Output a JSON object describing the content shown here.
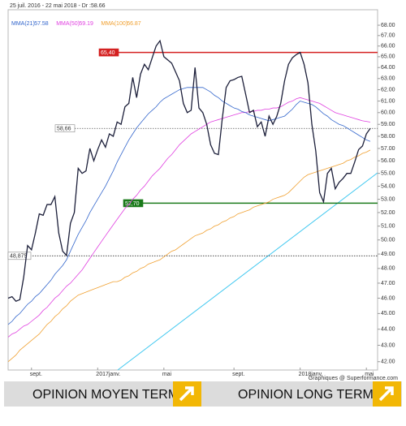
{
  "chart_data": {
    "type": "line",
    "subtitle": "25 juil. 2016 - 22 mai 2018 - Dr :",
    "credit": "Graphiques @ Superformance.com",
    "yscale": "log",
    "ylim": [
      41.6,
      69.2
    ],
    "yticks": [
      {
        "value": 42,
        "label": "42.00"
      },
      {
        "value": 43,
        "label": "43.00"
      },
      {
        "value": 44,
        "label": "44.00"
      },
      {
        "value": 45,
        "label": "45.00"
      },
      {
        "value": 46,
        "label": "46.00"
      },
      {
        "value": 47,
        "label": "47.00"
      },
      {
        "value": 48,
        "label": "48.00"
      },
      {
        "value": 49,
        "label": "49.00"
      },
      {
        "value": 50,
        "label": "50.00"
      },
      {
        "value": 51,
        "label": "51.00"
      },
      {
        "value": 52,
        "label": "52.00"
      },
      {
        "value": 53,
        "label": "53.00"
      },
      {
        "value": 54,
        "label": "54.00"
      },
      {
        "value": 55,
        "label": "55.00"
      },
      {
        "value": 56,
        "label": "56.00"
      },
      {
        "value": 57,
        "label": "57.00"
      },
      {
        "value": 58,
        "label": "58.00"
      },
      {
        "value": 59,
        "label": "59.00"
      },
      {
        "value": 60,
        "label": "60.00"
      },
      {
        "value": 61,
        "label": "61.00"
      },
      {
        "value": 62,
        "label": "62.00"
      },
      {
        "value": 63,
        "label": "63.00"
      },
      {
        "value": 64,
        "label": "64.00"
      },
      {
        "value": 65,
        "label": "65.00"
      },
      {
        "value": 66,
        "label": "66.00"
      },
      {
        "value": 67,
        "label": "67.00"
      },
      {
        "value": 68,
        "label": "68.00"
      }
    ],
    "grid": false,
    "categories": [
      null,
      null,
      null,
      null,
      null,
      null,
      "sept.",
      null,
      null,
      null,
      null,
      null,
      null,
      null,
      null,
      null,
      null,
      null,
      null,
      null,
      null,
      null,
      null,
      "2017janv.",
      null,
      null,
      null,
      null,
      null,
      null,
      null,
      null,
      null,
      null,
      null,
      null,
      null,
      null,
      null,
      null,
      "mai",
      null,
      null,
      null,
      null,
      null,
      null,
      null,
      null,
      null,
      null,
      null,
      null,
      null,
      null,
      null,
      null,
      null,
      "sept.",
      null,
      null,
      null,
      null,
      null,
      null,
      null,
      null,
      null,
      null,
      null,
      null,
      null,
      null,
      null,
      null,
      "2018janv.",
      null,
      null,
      null,
      null,
      null,
      null,
      null,
      null,
      null,
      null,
      null,
      null,
      null,
      null,
      null,
      null,
      "mai",
      null
    ],
    "series": [
      {
        "color": "#1c1f3a",
        "values": [
          46.0,
          46.1,
          45.8,
          45.9,
          47.4,
          49.6,
          49.3,
          50.5,
          51.9,
          51.8,
          52.6,
          52.6,
          53.2,
          50.5,
          49.2,
          48.9,
          51.2,
          52.0,
          55.4,
          55.0,
          55.2,
          57.0,
          56.0,
          56.9,
          57.7,
          57.1,
          58.2,
          58.0,
          59.2,
          59.0,
          60.5,
          60.8,
          63.1,
          61.3,
          63.4,
          64.3,
          63.8,
          64.9,
          66.0,
          66.5,
          65.0,
          64.7,
          64.4,
          63.6,
          62.8,
          60.8,
          60.0,
          60.2,
          64.0,
          60.4,
          60.0,
          59.0,
          57.3,
          56.6,
          56.5,
          59.5,
          62.2,
          62.8,
          62.9,
          63.1,
          63.2,
          61.6,
          60.0,
          60.2,
          58.8,
          59.2,
          58.0,
          59.7,
          59.0,
          59.7,
          60.8,
          62.8,
          64.3,
          64.9,
          65.2,
          65.4,
          64.3,
          62.6,
          59.0,
          56.8,
          53.5,
          52.8,
          55.0,
          55.4,
          53.8,
          54.3,
          54.6,
          55.0,
          55.0,
          55.9,
          56.9,
          57.2,
          58.2,
          58.66
        ]
      },
      {
        "name": "MMA(21)",
        "color": "#3366cc",
        "values": [
          44.3,
          44.5,
          44.8,
          45.0,
          45.3,
          45.6,
          45.8,
          46.1,
          46.3,
          46.6,
          46.9,
          47.2,
          47.6,
          47.9,
          48.2,
          48.6,
          49.2,
          49.8,
          50.4,
          50.9,
          51.4,
          52.0,
          52.5,
          53.0,
          53.5,
          54.0,
          54.6,
          55.2,
          55.9,
          56.5,
          57.1,
          57.7,
          58.2,
          58.7,
          59.1,
          59.5,
          59.9,
          60.2,
          60.5,
          60.9,
          61.2,
          61.4,
          61.6,
          61.8,
          62.0,
          62.1,
          62.2,
          62.2,
          62.2,
          62.2,
          62.2,
          62.0,
          61.8,
          61.5,
          61.3,
          61.0,
          60.8,
          60.6,
          60.4,
          60.3,
          60.1,
          60.0,
          59.8,
          59.7,
          59.6,
          59.5,
          59.4,
          59.3,
          59.4,
          59.5,
          59.6,
          59.7,
          60.0,
          60.3,
          60.7,
          61.0,
          60.9,
          60.8,
          60.7,
          60.5,
          60.2,
          59.9,
          59.7,
          59.4,
          59.2,
          59.0,
          58.9,
          58.7,
          58.5,
          58.3,
          58.1,
          57.9,
          57.7,
          57.58
        ]
      },
      {
        "name": "MMA(50)",
        "color": "#e040e0",
        "values": [
          43.5,
          43.7,
          43.8,
          44.0,
          44.2,
          44.3,
          44.5,
          44.7,
          44.9,
          45.2,
          45.4,
          45.7,
          46.0,
          46.2,
          46.5,
          46.8,
          47.0,
          47.3,
          47.6,
          47.9,
          48.3,
          48.7,
          49.1,
          49.5,
          49.9,
          50.3,
          50.7,
          51.1,
          51.5,
          51.9,
          52.3,
          52.6,
          53.0,
          53.3,
          53.7,
          54.0,
          54.4,
          54.8,
          55.1,
          55.4,
          55.8,
          56.2,
          56.5,
          56.9,
          57.3,
          57.6,
          57.9,
          58.2,
          58.4,
          58.6,
          58.8,
          59.0,
          59.2,
          59.3,
          59.4,
          59.5,
          59.6,
          59.7,
          59.8,
          59.9,
          60.0,
          60.0,
          60.1,
          60.1,
          60.2,
          60.2,
          60.3,
          60.3,
          60.4,
          60.4,
          60.5,
          60.7,
          60.9,
          61.0,
          61.2,
          61.3,
          61.2,
          61.1,
          61.0,
          60.9,
          60.8,
          60.6,
          60.4,
          60.2,
          60.0,
          59.9,
          59.8,
          59.7,
          59.6,
          59.5,
          59.4,
          59.3,
          59.25,
          59.19
        ]
      },
      {
        "name": "MMA(100)",
        "color": "#f0a030",
        "values": [
          42.0,
          42.2,
          42.4,
          42.7,
          42.9,
          43.1,
          43.3,
          43.5,
          43.7,
          44.0,
          44.3,
          44.5,
          44.8,
          45.0,
          45.3,
          45.5,
          45.8,
          46.0,
          46.2,
          46.3,
          46.4,
          46.5,
          46.6,
          46.7,
          46.8,
          46.9,
          47.0,
          47.1,
          47.1,
          47.2,
          47.4,
          47.5,
          47.7,
          47.8,
          48.0,
          48.1,
          48.3,
          48.4,
          48.5,
          48.6,
          48.8,
          49.0,
          49.2,
          49.3,
          49.5,
          49.7,
          49.9,
          50.1,
          50.3,
          50.4,
          50.5,
          50.7,
          50.8,
          51.0,
          51.1,
          51.3,
          51.4,
          51.6,
          51.7,
          51.9,
          52.0,
          52.1,
          52.2,
          52.4,
          52.5,
          52.6,
          52.7,
          52.8,
          53.0,
          53.1,
          53.2,
          53.3,
          53.5,
          53.8,
          54.1,
          54.4,
          54.7,
          54.9,
          55.0,
          55.1,
          55.2,
          55.3,
          55.4,
          55.5,
          55.6,
          55.7,
          55.8,
          56.0,
          56.1,
          56.3,
          56.4,
          56.6,
          56.7,
          56.87
        ]
      }
    ],
    "hlines": [
      {
        "value": 65.4,
        "label": "65,40",
        "color": "#d42020",
        "style": "solid"
      },
      {
        "value": 52.7,
        "label": "52,70",
        "color": "#1a7a1a",
        "style": "solid"
      },
      {
        "value": 58.66,
        "label": "58,66",
        "color": "#555555",
        "style": "dotted"
      },
      {
        "value": 48.875,
        "label": "48,875",
        "color": "#333333",
        "style": "dotted"
      }
    ]
  },
  "buttons": [
    "OPINION MOYEN TERME",
    "OPINION LONG TERME"
  ]
}
